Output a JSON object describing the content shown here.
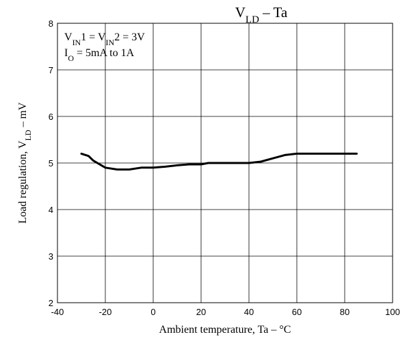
{
  "chart_data": {
    "type": "line",
    "title": "V_LD – Ta",
    "title_main": "V",
    "title_sub": "LD",
    "title_rest": " – Ta",
    "xlabel": "Ambient temperature, Ta – °C",
    "ylabel_main": "Load regulation,  V",
    "ylabel_sub": "LD",
    "ylabel_rest": " – mV",
    "xlim": [
      -40,
      100
    ],
    "ylim": [
      2,
      8
    ],
    "x_ticks": [
      -40,
      -20,
      0,
      20,
      40,
      60,
      80,
      100
    ],
    "y_ticks": [
      2,
      3,
      4,
      5,
      6,
      7,
      8
    ],
    "grid": true,
    "annotation_line1": {
      "p1": "V",
      "s1": "IN",
      "p2": "1 = V",
      "s2": "IN",
      "p3": "2 = 3V"
    },
    "annotation_line2": {
      "p1": "I",
      "s1": "O",
      "p2": " = 5mA to 1A"
    },
    "series": [
      {
        "color": "#000000",
        "x": [
          -30,
          -27,
          -25,
          -20,
          -15,
          -10,
          -5,
          0,
          5,
          10,
          15,
          20,
          23,
          30,
          40,
          45,
          50,
          55,
          60,
          70,
          85
        ],
        "y": [
          5.2,
          5.15,
          5.05,
          4.9,
          4.86,
          4.86,
          4.9,
          4.9,
          4.92,
          4.95,
          4.97,
          4.97,
          5.0,
          5.0,
          5.0,
          5.03,
          5.1,
          5.17,
          5.2,
          5.2,
          5.2
        ]
      }
    ]
  }
}
